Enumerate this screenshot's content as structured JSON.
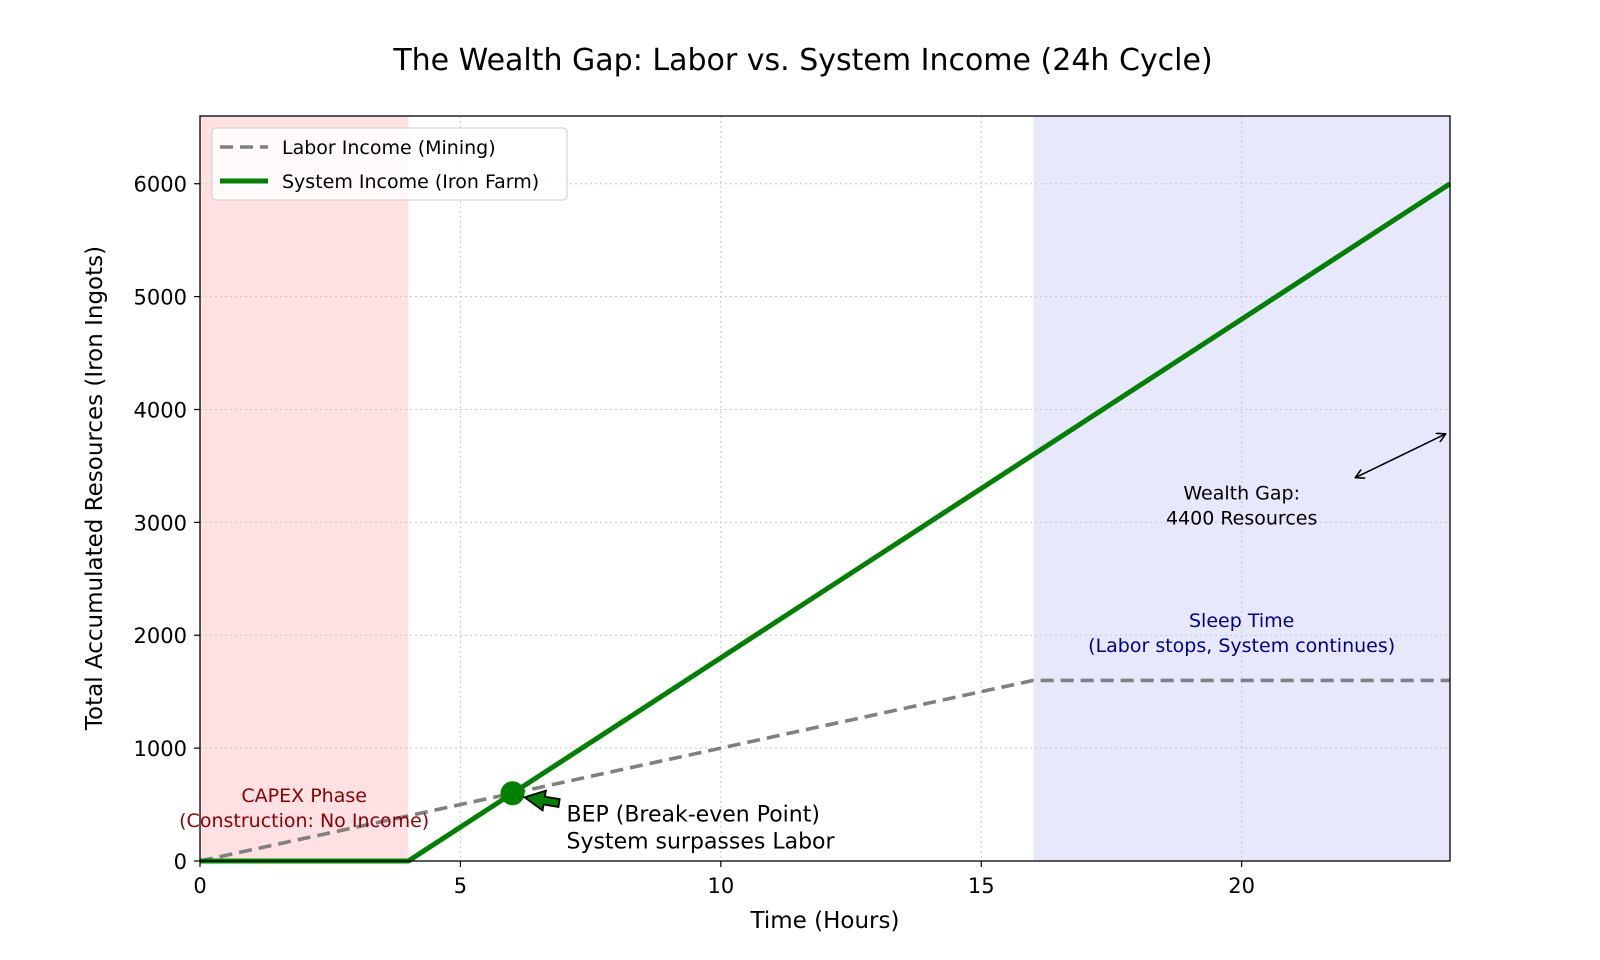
{
  "chart_data": {
    "type": "line",
    "title": "The Wealth Gap: Labor vs. System Income (24h Cycle)",
    "xlabel": "Time (Hours)",
    "ylabel": "Total Accumulated Resources (Iron Ingots)",
    "xlim": [
      0,
      24
    ],
    "ylim": [
      0,
      6600
    ],
    "xticks": [
      0,
      5,
      10,
      15,
      20
    ],
    "yticks": [
      0,
      1000,
      2000,
      3000,
      4000,
      5000,
      6000
    ],
    "grid": true,
    "legend_position": "top-left",
    "series": [
      {
        "name": "Labor Income (Mining)",
        "style": "dashed",
        "color": "#808080",
        "x": [
          0,
          16,
          24
        ],
        "y": [
          0,
          1600,
          1600
        ]
      },
      {
        "name": "System Income (Iron Farm)",
        "style": "solid",
        "color": "#008000",
        "x": [
          0,
          4,
          24
        ],
        "y": [
          0,
          0,
          6000
        ]
      }
    ],
    "regions": [
      {
        "x_start": 0,
        "x_end": 4,
        "color": "#ffd0d4",
        "label_lines": [
          "CAPEX Phase",
          "(Construction: No Income)"
        ],
        "label_color": "#8b0000",
        "label_x": 2,
        "label_y": 300
      },
      {
        "x_start": 16,
        "x_end": 24,
        "color": "#dcdcfa",
        "label_lines": [
          "Sleep Time",
          "(Labor stops, System continues)"
        ],
        "label_color": "#00008b",
        "label_x": 20,
        "label_y": 1850
      }
    ],
    "bep": {
      "x": 6,
      "y": 600,
      "color": "#008000",
      "label_lines": [
        "BEP (Break-even Point)",
        "System surpasses Labor"
      ]
    },
    "wealth_gap": {
      "label_lines": [
        "Wealth Gap:",
        "4400 Resources"
      ],
      "arrow_from": [
        22.2,
        3400
      ],
      "arrow_to": [
        23.9,
        3780
      ]
    }
  }
}
